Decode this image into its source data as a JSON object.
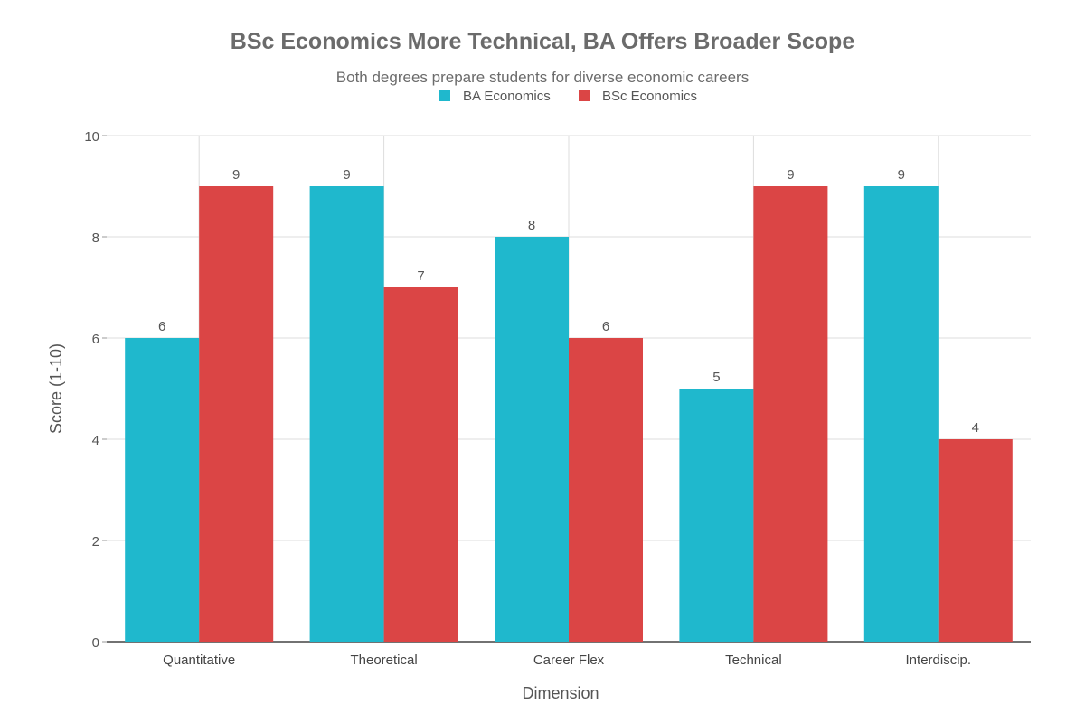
{
  "chart_data": {
    "type": "bar",
    "title": "BSc Economics More Technical, BA Offers Broader Scope",
    "subtitle": "Both degrees prepare students for diverse economic careers",
    "xlabel": "Dimension",
    "ylabel": "Score (1-10)",
    "ylim": [
      0,
      10
    ],
    "yticks": [
      0,
      2,
      4,
      6,
      8,
      10
    ],
    "grid": true,
    "legend_position": "top-center",
    "categories": [
      "Quantitative",
      "Theoretical",
      "Career Flex",
      "Technical",
      "Interdiscip."
    ],
    "series": [
      {
        "name": "BA Economics",
        "color": "#1FB8CD",
        "values": [
          6,
          9,
          8,
          5,
          9
        ]
      },
      {
        "name": "BSc Economics",
        "color": "#DB4545",
        "values": [
          9,
          7,
          6,
          9,
          4
        ]
      }
    ]
  }
}
